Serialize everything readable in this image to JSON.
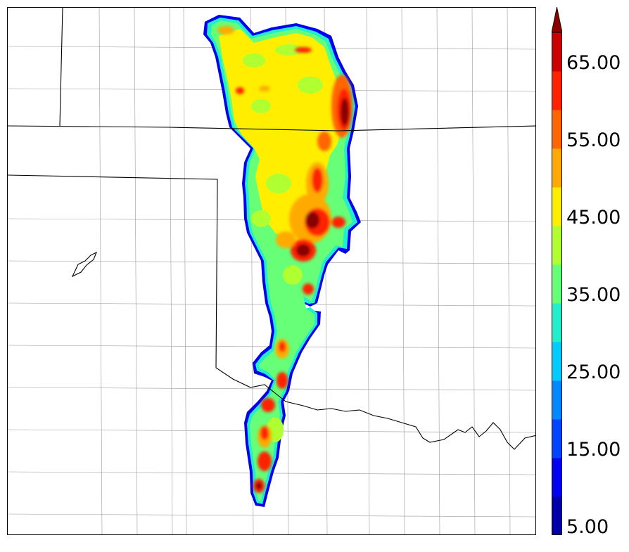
{
  "colorbar": {
    "labels": [
      "65.00",
      "55.00",
      "45.00",
      "35.00",
      "25.00",
      "15.00",
      "5.00"
    ],
    "levels": [
      5,
      10,
      15,
      20,
      25,
      30,
      35,
      40,
      45,
      50,
      55,
      60,
      65,
      70
    ],
    "colors": [
      "#0000aa",
      "#0000ee",
      "#0044ff",
      "#0088ff",
      "#00ccff",
      "#22eecc",
      "#66ff77",
      "#b0ff30",
      "#ffee00",
      "#ffaa00",
      "#ff6600",
      "#ff2200",
      "#cc0000",
      "#880000"
    ],
    "extend": "max"
  },
  "map": {
    "background": "#ffffff",
    "state_border_color": "#000000",
    "county_line_color": "#999999"
  }
}
